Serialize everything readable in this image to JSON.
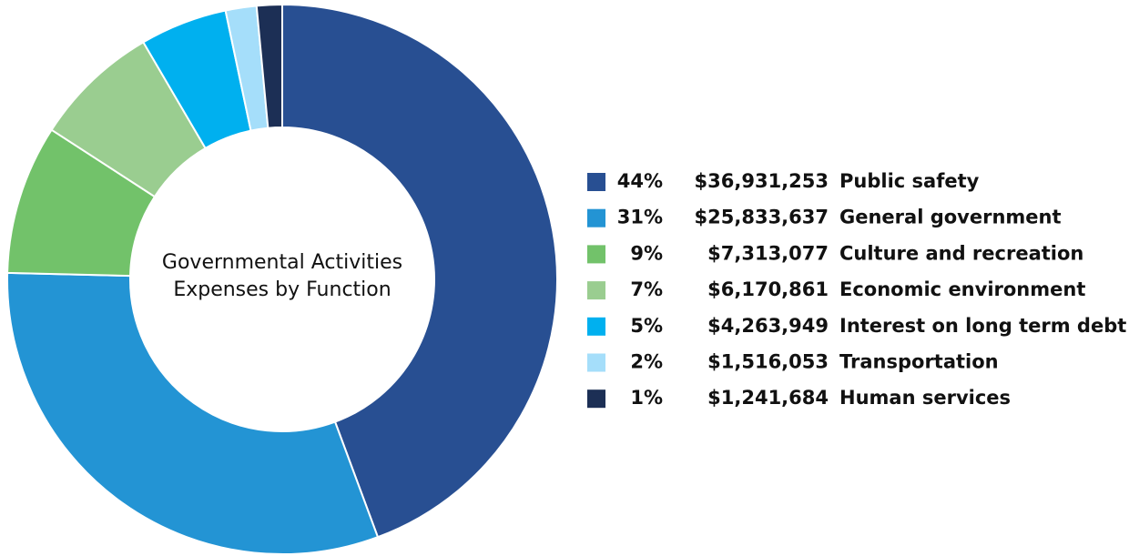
{
  "chart_data": {
    "type": "donut",
    "title": "Governmental Activities Expenses by Function",
    "categories": [
      "Public safety",
      "General government",
      "Culture and recreation",
      "Economic environment",
      "Interest on long term debt",
      "Transportation",
      "Human services"
    ],
    "values": [
      36931253,
      25833637,
      7313077,
      6170861,
      4263949,
      1516053,
      1241684
    ],
    "value_labels": [
      "$36,931,253",
      "$25,833,637",
      "$7,313,077",
      "$6,170,861",
      "$4,263,949",
      "$1,516,053",
      "$1,241,684"
    ],
    "percent_labels": [
      "44%",
      "31%",
      "9%",
      "7%",
      "5%",
      "2%",
      "1%"
    ],
    "colors": [
      "#284f92",
      "#2394d4",
      "#72c26a",
      "#9acd90",
      "#00b0ef",
      "#a5defa",
      "#1c2f55"
    ],
    "legend": "right"
  }
}
